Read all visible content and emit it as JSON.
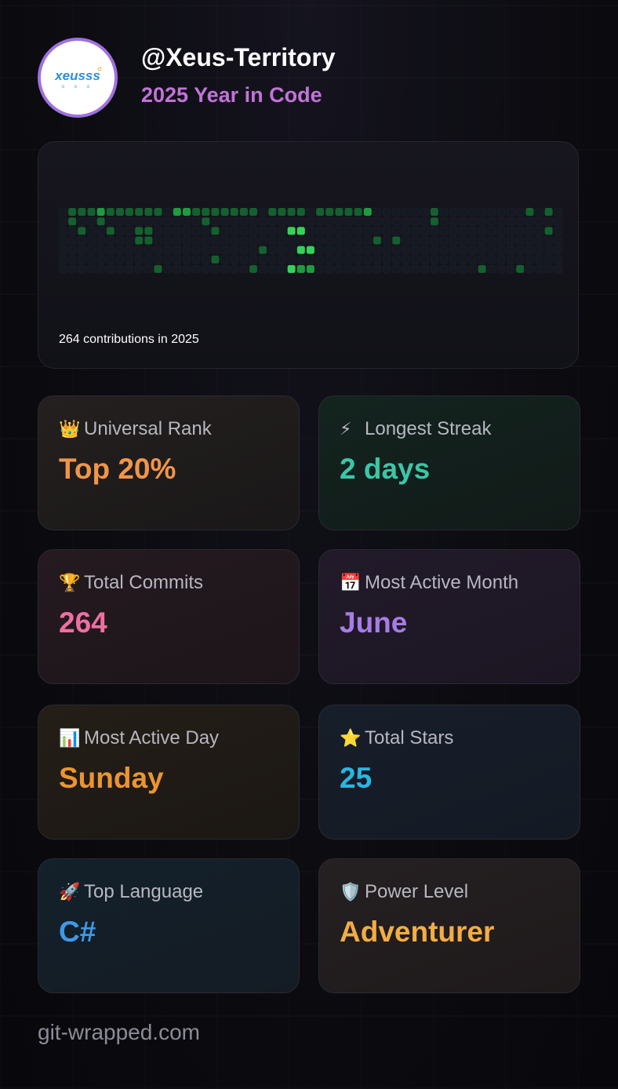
{
  "profile": {
    "username": "@Xeus-Territory",
    "subtitle": "2025 Year in Code",
    "avatar_text": "xeusss"
  },
  "graph": {
    "caption": "264 contributions in 2025",
    "weeks": 53,
    "days": 7,
    "active_cells": [
      [
        1,
        0,
        1
      ],
      [
        1,
        1,
        1
      ],
      [
        2,
        0,
        1
      ],
      [
        2,
        2,
        1
      ],
      [
        3,
        0,
        1
      ],
      [
        4,
        0,
        2
      ],
      [
        4,
        1,
        1
      ],
      [
        5,
        0,
        1
      ],
      [
        5,
        2,
        1
      ],
      [
        6,
        0,
        1
      ],
      [
        7,
        0,
        1
      ],
      [
        8,
        0,
        1
      ],
      [
        8,
        2,
        1
      ],
      [
        8,
        3,
        1
      ],
      [
        9,
        0,
        1
      ],
      [
        9,
        2,
        1
      ],
      [
        9,
        3,
        1
      ],
      [
        10,
        0,
        1
      ],
      [
        10,
        6,
        1
      ],
      [
        12,
        0,
        2
      ],
      [
        13,
        0,
        2
      ],
      [
        14,
        0,
        1
      ],
      [
        15,
        0,
        1
      ],
      [
        15,
        1,
        1
      ],
      [
        16,
        0,
        1
      ],
      [
        16,
        2,
        1
      ],
      [
        16,
        5,
        1
      ],
      [
        17,
        0,
        1
      ],
      [
        18,
        0,
        1
      ],
      [
        19,
        0,
        1
      ],
      [
        20,
        0,
        1
      ],
      [
        20,
        6,
        1
      ],
      [
        21,
        4,
        1
      ],
      [
        22,
        0,
        1
      ],
      [
        23,
        0,
        1
      ],
      [
        24,
        0,
        1
      ],
      [
        24,
        2,
        3
      ],
      [
        24,
        6,
        3
      ],
      [
        25,
        0,
        1
      ],
      [
        25,
        2,
        3
      ],
      [
        25,
        4,
        3
      ],
      [
        25,
        6,
        2
      ],
      [
        26,
        4,
        3
      ],
      [
        26,
        6,
        2
      ],
      [
        27,
        0,
        1
      ],
      [
        28,
        0,
        1
      ],
      [
        29,
        0,
        1
      ],
      [
        30,
        0,
        1
      ],
      [
        31,
        0,
        1
      ],
      [
        32,
        0,
        2
      ],
      [
        33,
        3,
        1
      ],
      [
        35,
        3,
        1
      ],
      [
        39,
        0,
        1
      ],
      [
        39,
        1,
        1
      ],
      [
        44,
        6,
        1
      ],
      [
        48,
        6,
        1
      ],
      [
        49,
        0,
        1
      ],
      [
        51,
        0,
        1
      ],
      [
        51,
        2,
        1
      ]
    ]
  },
  "stats": [
    {
      "emoji": "👑",
      "label": "Universal Rank",
      "value": "Top 20%",
      "color": "#f0954a"
    },
    {
      "emoji": "⚡",
      "label": "Longest Streak",
      "value": "2 days",
      "color": "#3cc6a8"
    },
    {
      "emoji": "🏆",
      "label": "Total Commits",
      "value": "264",
      "color": "#ef6ea2"
    },
    {
      "emoji": "📅",
      "label": "Most Active Month",
      "value": "June",
      "color": "#a77ce6"
    },
    {
      "emoji": "📊",
      "label": "Most Active Day",
      "value": "Sunday",
      "color": "#eb9530"
    },
    {
      "emoji": "⭐",
      "label": "Total Stars",
      "value": "25",
      "color": "#28b7e0"
    },
    {
      "emoji": "🚀",
      "label": "Top Language",
      "value": "C#",
      "color": "#3d99e6"
    },
    {
      "emoji": "🛡️",
      "label": "Power Level",
      "value": "Adventurer",
      "color": "#f2ad45"
    }
  ],
  "footer": {
    "text": "git-wrapped.com"
  }
}
